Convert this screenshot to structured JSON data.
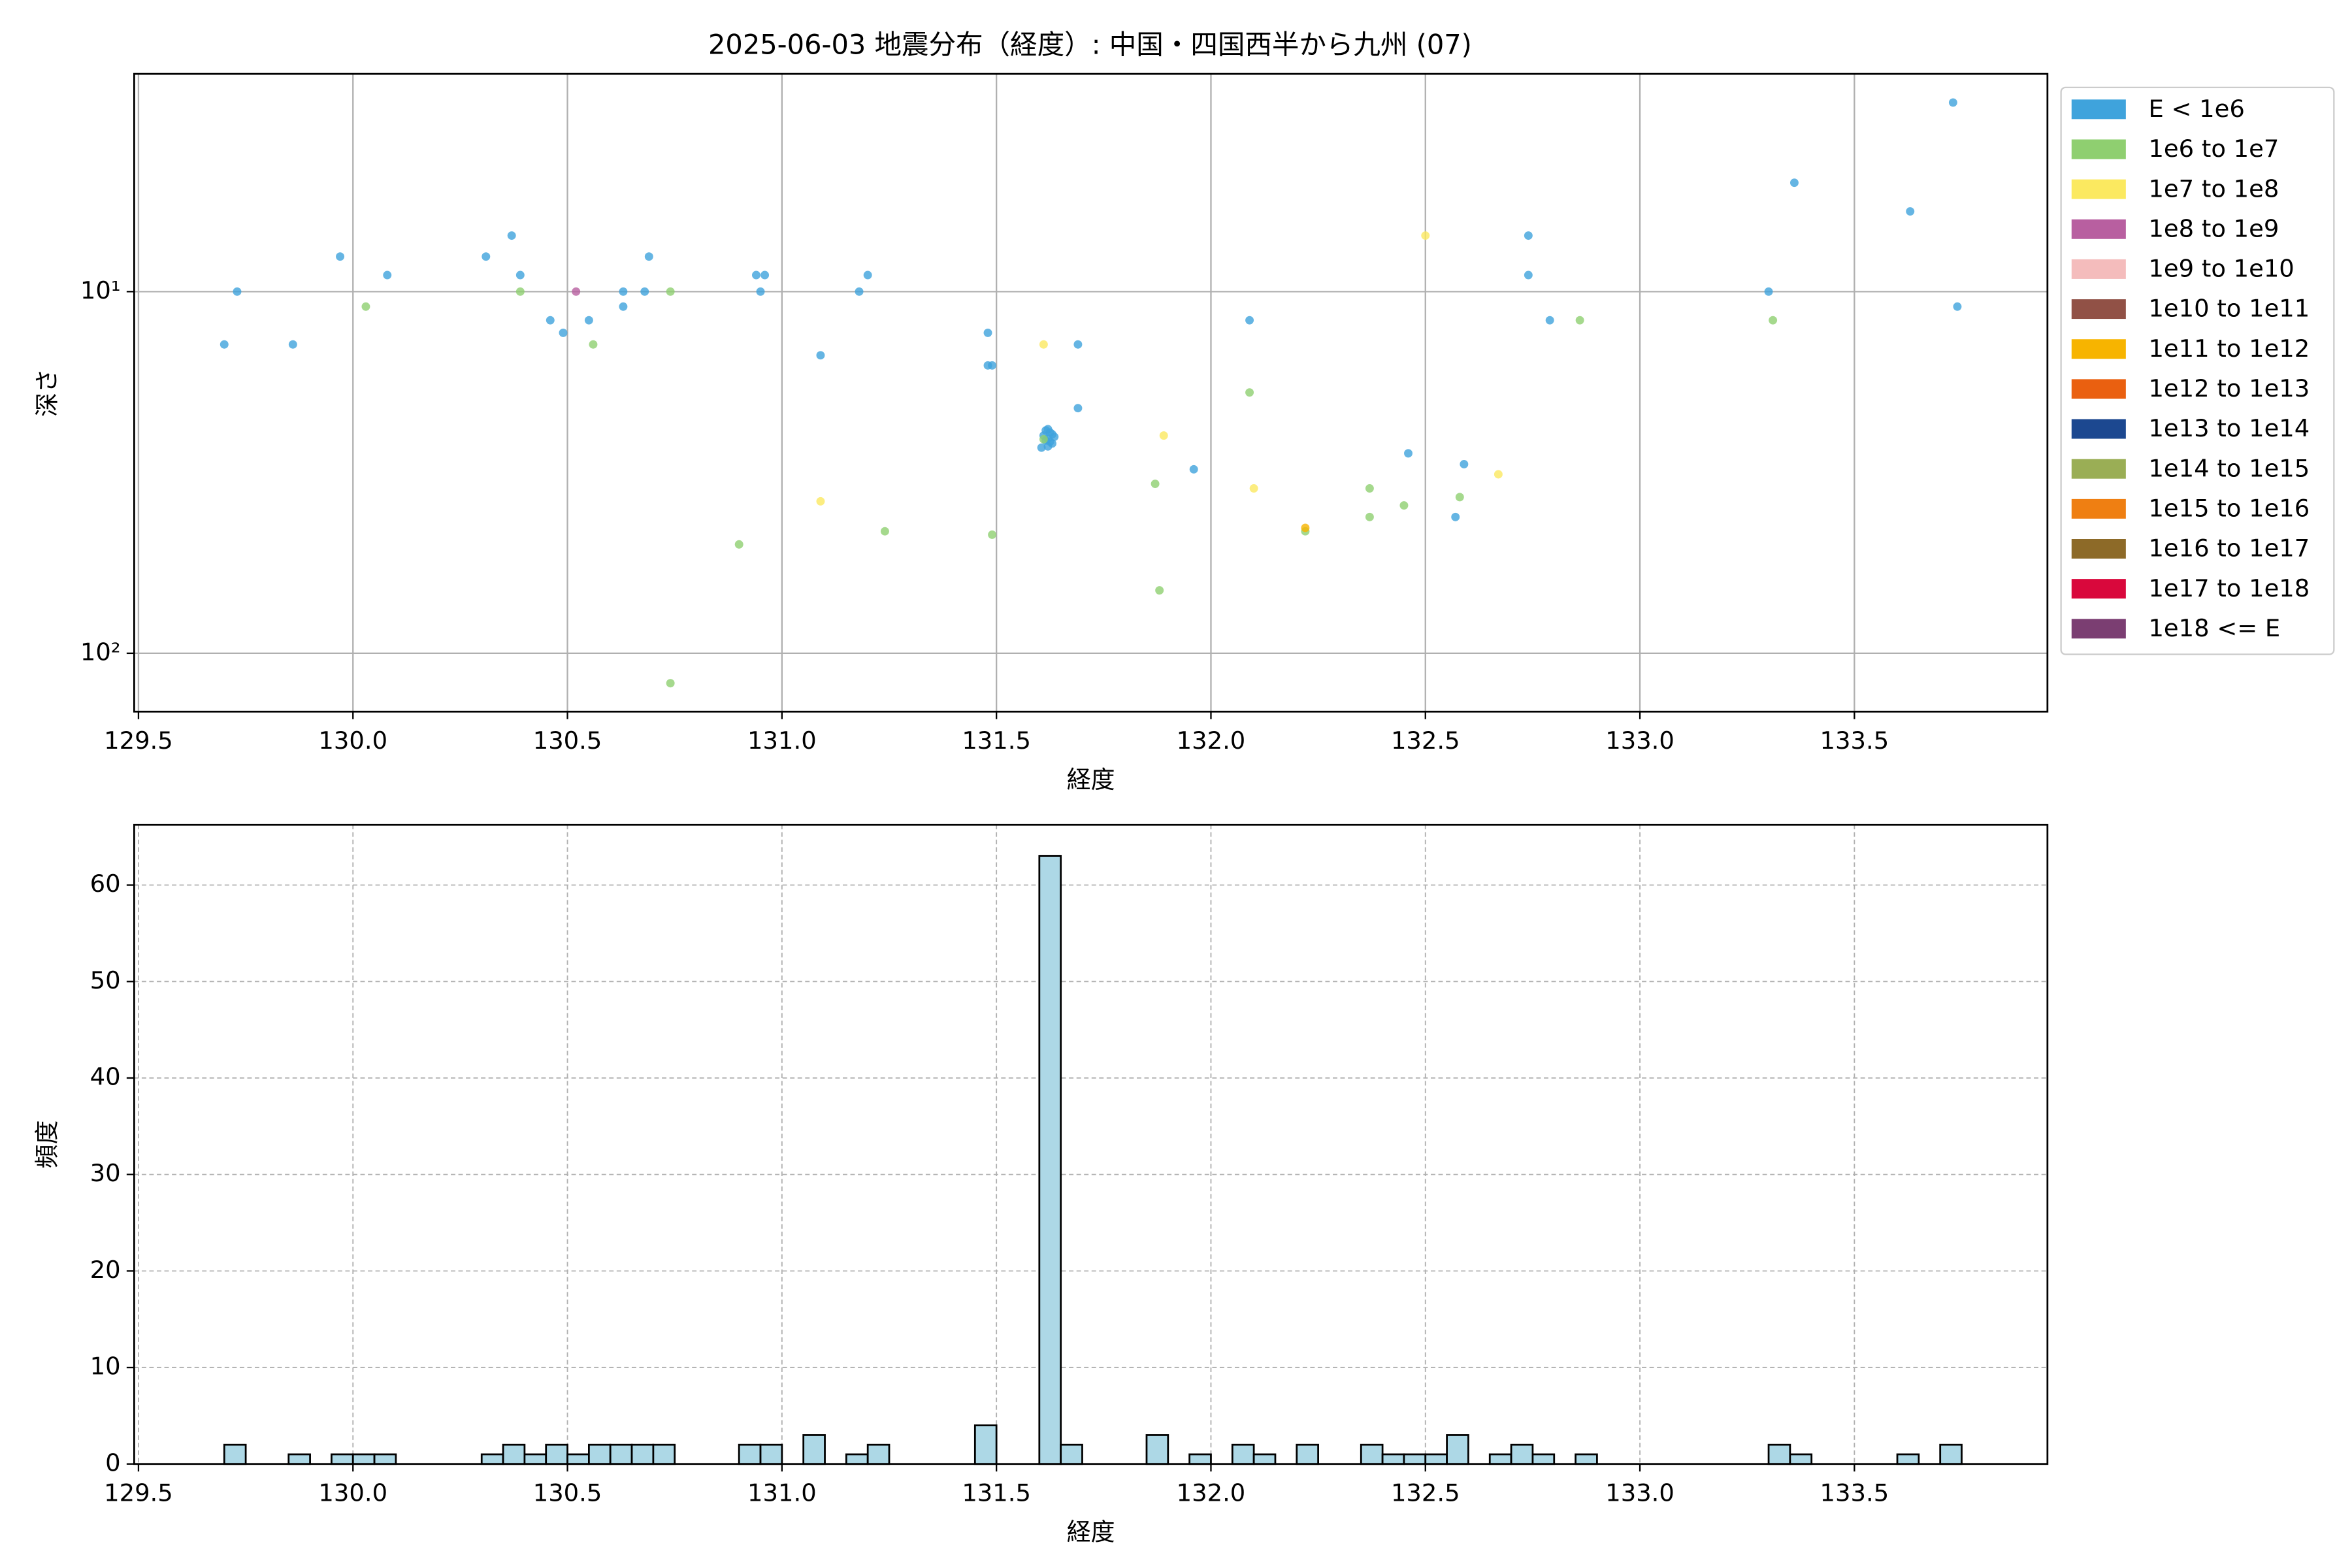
{
  "chart_data": [
    {
      "type": "scatter",
      "title": "2025-06-03 地震分布（経度）: 中国・四国西半から九州 (07)",
      "x_label": "経度",
      "y_label": "深さ",
      "xlim": [
        129.49,
        133.95
      ],
      "xticks": [
        129.5,
        {
          "value": 130,
          "label": "130.0"
        },
        130.5,
        {
          "value": 131,
          "label": "131.0"
        },
        131.5,
        {
          "value": 132,
          "label": "132.0"
        },
        132.5,
        {
          "value": 133,
          "label": "133.0"
        },
        133.5
      ],
      "ylim": [
        2.5,
        145
      ],
      "y_inverted": true,
      "y_scale": "log",
      "yticks": [
        {
          "value": 10,
          "label": "10¹"
        },
        {
          "value": 100,
          "label": "10²"
        }
      ],
      "grid": true,
      "legend": "outside upper right",
      "series": [
        {
          "name": "E < 1e6",
          "color": "#3fa3dc",
          "x": [
            129.7,
            129.73,
            129.86,
            129.97,
            130.08,
            130.31,
            130.37,
            130.39,
            130.46,
            130.49,
            130.55,
            130.63,
            130.63,
            130.68,
            130.69,
            130.94,
            130.95,
            130.96,
            131.09,
            131.18,
            131.2,
            131.48,
            131.48,
            131.49,
            131.61,
            131.615,
            131.62,
            131.62,
            131.625,
            131.63,
            131.63,
            131.62,
            131.615,
            131.625,
            131.605,
            131.635,
            131.69,
            131.69,
            131.96,
            132.09,
            132.46,
            132.57,
            132.59,
            132.74,
            132.74,
            132.79,
            133.3,
            133.36,
            133.63,
            133.73,
            133.74
          ],
          "values": [
            14,
            10,
            14,
            8,
            9,
            8,
            7,
            9,
            12,
            13,
            12,
            10,
            11,
            10,
            8,
            9,
            10,
            9,
            15,
            10,
            9,
            13,
            16,
            16,
            25,
            24.2,
            24,
            25.5,
            26,
            24.8,
            26.3,
            26.8,
            25.8,
            24.5,
            27,
            25.2,
            14,
            21,
            31,
            12,
            28,
            42,
            30,
            7,
            9,
            12,
            10,
            5,
            6,
            3,
            11
          ]
        },
        {
          "name": "1e6 to 1e7",
          "color": "#8fcf70",
          "x": [
            130.03,
            130.39,
            130.56,
            130.74,
            130.9,
            130.74,
            131.24,
            131.49,
            131.61,
            131.87,
            131.88,
            132.09,
            132.22,
            132.37,
            132.37,
            132.45,
            132.58,
            132.86,
            133.31
          ],
          "values": [
            11,
            10,
            14,
            10,
            50,
            121,
            46,
            47,
            25.6,
            34,
            67,
            19,
            46,
            35,
            42,
            39,
            37,
            12,
            12
          ]
        },
        {
          "name": "1e7 to 1e8",
          "color": "#fbe960",
          "x": [
            131.61,
            131.09,
            131.89,
            132.1,
            132.5,
            132.67
          ],
          "values": [
            14,
            38,
            25,
            35,
            7,
            32
          ]
        },
        {
          "name": "1e8 to 1e9",
          "color": "#b85fa0",
          "x": [
            130.52
          ],
          "values": [
            10
          ]
        },
        {
          "name": "1e9 to 1e10",
          "color": "#f4bcbc",
          "x": [],
          "values": []
        },
        {
          "name": "1e10 to 1e11",
          "color": "#915146",
          "x": [],
          "values": []
        },
        {
          "name": "1e11 to 1e12",
          "color": "#f7b400",
          "x": [
            132.22
          ],
          "values": [
            45
          ]
        },
        {
          "name": "1e12 to 1e13",
          "color": "#ea6010",
          "x": [],
          "values": []
        },
        {
          "name": "1e13 to 1e14",
          "color": "#1c4890",
          "x": [],
          "values": []
        },
        {
          "name": "1e14 to 1e15",
          "color": "#9aae55",
          "x": [],
          "values": []
        },
        {
          "name": "1e15 to 1e16",
          "color": "#ef7f12",
          "x": [],
          "values": []
        },
        {
          "name": "1e16 to 1e17",
          "color": "#8d6a28",
          "x": [],
          "values": []
        },
        {
          "name": "1e17 to 1e18",
          "color": "#d9083c",
          "x": [],
          "values": []
        },
        {
          "name": "1e18 <= E",
          "color": "#7b3e72",
          "x": [],
          "values": []
        }
      ]
    },
    {
      "type": "histogram",
      "x_label": "経度",
      "y_label": "頻度",
      "color": "#add8e6",
      "grid": true,
      "xlim": [
        129.49,
        133.95
      ],
      "xticks": [
        129.5,
        {
          "value": 130,
          "label": "130.0"
        },
        130.5,
        {
          "value": 131,
          "label": "131.0"
        },
        131.5,
        {
          "value": 132,
          "label": "132.0"
        },
        132.5,
        {
          "value": 133,
          "label": "133.0"
        },
        133.5
      ],
      "ylim": [
        0,
        66.25
      ],
      "yticks": [
        0,
        10,
        20,
        30,
        40,
        50,
        60
      ],
      "bins": [
        129.7,
        129.75,
        129.8,
        129.85,
        129.9,
        129.95,
        130.0,
        130.05,
        130.1,
        130.15,
        130.2,
        130.25,
        130.3,
        130.35,
        130.4,
        130.45,
        130.5,
        130.55,
        130.6,
        130.65,
        130.7,
        130.75,
        130.8,
        130.85,
        130.9,
        130.95,
        131.0,
        131.05,
        131.1,
        131.15,
        131.2,
        131.25,
        131.3,
        131.35,
        131.4,
        131.45,
        131.5,
        131.55,
        131.6,
        131.65,
        131.7,
        131.75,
        131.8,
        131.85,
        131.9,
        131.95,
        132.0,
        132.05,
        132.1,
        132.15,
        132.2,
        132.25,
        132.3,
        132.35,
        132.4,
        132.45,
        132.5,
        132.55,
        132.6,
        132.65,
        132.7,
        132.75,
        132.8,
        132.85,
        132.9,
        132.95,
        133.0,
        133.05,
        133.1,
        133.15,
        133.2,
        133.25,
        133.3,
        133.35,
        133.4,
        133.45,
        133.5,
        133.55,
        133.6,
        133.65,
        133.7,
        133.75
      ],
      "values": [
        2,
        0,
        0,
        1,
        0,
        1,
        1,
        1,
        0,
        0,
        0,
        0,
        1,
        2,
        1,
        2,
        1,
        2,
        2,
        2,
        2,
        0,
        0,
        0,
        2,
        2,
        0,
        3,
        0,
        1,
        2,
        0,
        0,
        0,
        0,
        4,
        0,
        0,
        63,
        2,
        0,
        0,
        0,
        3,
        0,
        1,
        0,
        2,
        1,
        0,
        2,
        0,
        0,
        2,
        1,
        1,
        1,
        3,
        0,
        1,
        2,
        1,
        0,
        1,
        0,
        0,
        0,
        0,
        0,
        0,
        0,
        0,
        2,
        1,
        0,
        0,
        0,
        0,
        1,
        0,
        2
      ]
    }
  ]
}
